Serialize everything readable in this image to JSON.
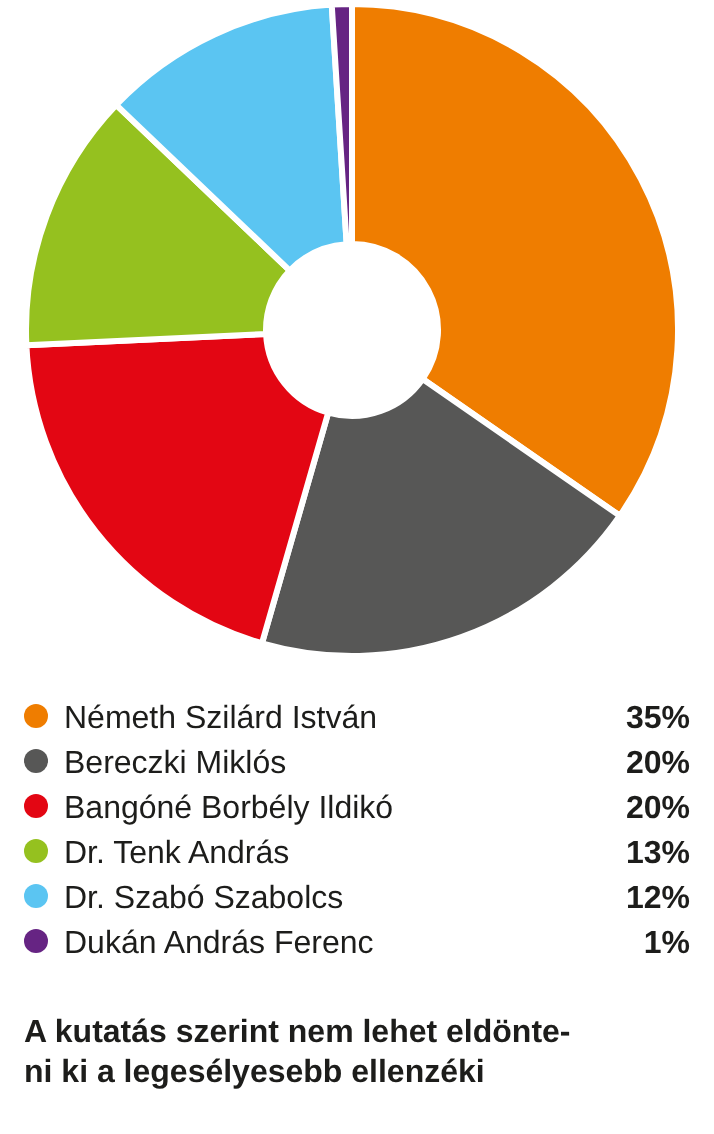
{
  "chart_data": {
    "type": "donut",
    "title": "A kutatás szerint nem lehet eldönte-\nni ki a legesélyesebb ellenzéki",
    "categories": [
      "Németh Szilárd István",
      "Bereczki Miklós",
      "Bangóné Borbély Ildikó",
      "Dr. Tenk András",
      "Dr. Szabó Szabolcs",
      "Dukán András Ferenc"
    ],
    "values": [
      35,
      20,
      20,
      13,
      12,
      1
    ],
    "colors": [
      "#ef7d00",
      "#575756",
      "#e30613",
      "#95c11f",
      "#5bc5f2",
      "#662483"
    ],
    "value_labels": [
      "35%",
      "20%",
      "20%",
      "13%",
      "12%",
      "1%"
    ],
    "legend": "bottom"
  }
}
